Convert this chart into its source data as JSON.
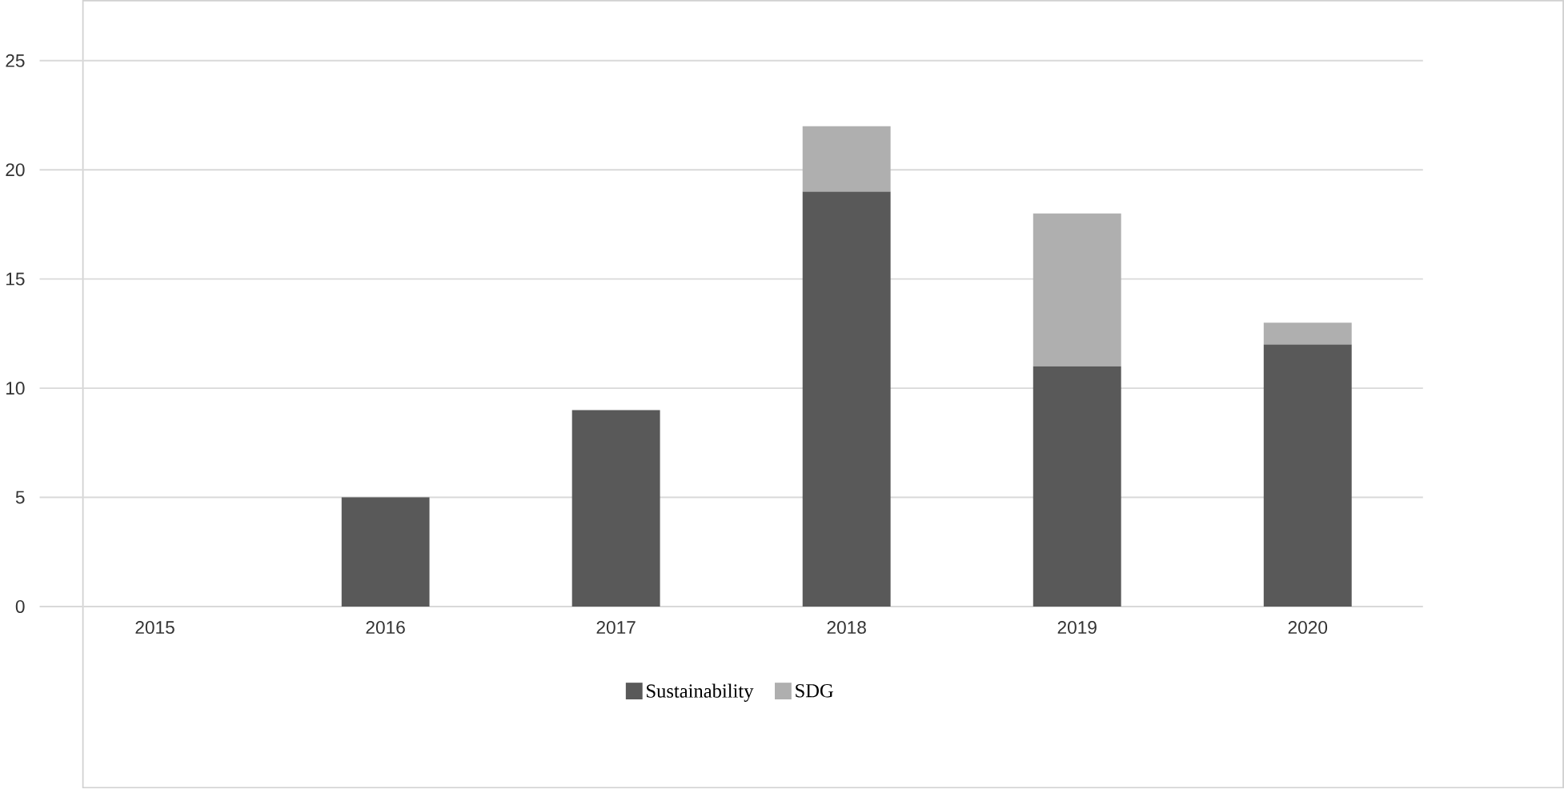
{
  "chart_data": {
    "type": "bar",
    "stacked": true,
    "categories": [
      "2015",
      "2016",
      "2017",
      "2018",
      "2019",
      "2020"
    ],
    "series": [
      {
        "name": "Sustainability",
        "color": "#595959",
        "values": [
          0,
          5,
          9,
          19,
          11,
          12
        ]
      },
      {
        "name": "SDG",
        "color": "#afafaf",
        "values": [
          0,
          0,
          0,
          3,
          7,
          1
        ]
      }
    ],
    "ylim": [
      0,
      25
    ],
    "yticks": [
      0,
      5,
      10,
      15,
      20,
      25
    ],
    "grid": "y",
    "legend": "bottom"
  }
}
